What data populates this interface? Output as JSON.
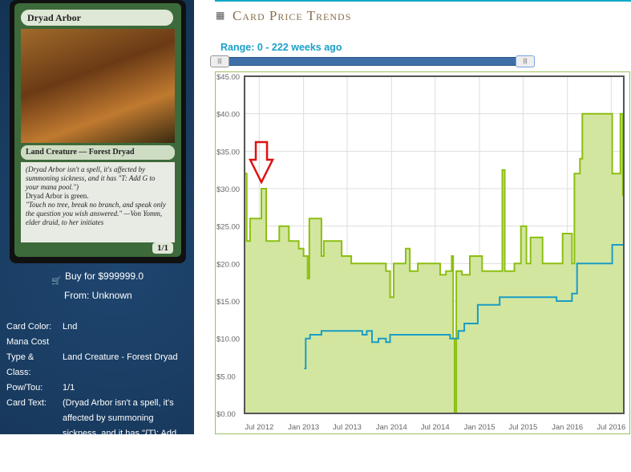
{
  "card": {
    "name": "Dryad Arbor",
    "type_line": "Land Creature — Forest Dryad",
    "rules": "(Dryad Arbor isn't a spell, it's affected by summoning sickness, and it has \"T: Add G to your mana pool.\")",
    "rules2": "Dryad Arbor is green.",
    "flavor": "\"Touch no tree, break no branch, and speak only the question you wish answered.\" —Von Yomm, elder druid, to her initiates",
    "pt": "1/1"
  },
  "buy": {
    "label": "Buy for $999999.0",
    "from": "From: Unknown",
    "icon": "cart-icon"
  },
  "info": [
    {
      "k": "Card Color:",
      "v": "Lnd"
    },
    {
      "k": "Mana Cost",
      "v": ""
    },
    {
      "k": "Type & Class:",
      "v": "Land Creature - Forest Dryad"
    },
    {
      "k": "Pow/Tou:",
      "v": "1/1"
    },
    {
      "k": "Card Text:",
      "v": "(Dryad Arbor isn't a spell, it's affected by summoning sickness, and it has \"{T}: Add {G} to your mana pool.\") Dryad"
    }
  ],
  "header": {
    "title": "Card Price Trends",
    "icon": "calendar-icon",
    "accent": "#10a8c8"
  },
  "range": {
    "label": "Range: 0 - 222 weeks ago",
    "min_weeks": 0,
    "max_weeks": 222
  },
  "chart_data": {
    "type": "line",
    "xlim": [
      "2012-05-01",
      "2016-08-22"
    ],
    "ylim": [
      0,
      45
    ],
    "yticks": [
      "$0.00",
      "$5.00",
      "$10.00",
      "$15.00",
      "$20.00",
      "$25.00",
      "$30.00",
      "$35.00",
      "$40.00",
      "$45.00"
    ],
    "xticks": [
      {
        "d": "2012-07-01",
        "l": "Jul 2012"
      },
      {
        "d": "2013-01-01",
        "l": "Jan 2013"
      },
      {
        "d": "2013-07-01",
        "l": "Jul 2013"
      },
      {
        "d": "2014-01-01",
        "l": "Jan 2014"
      },
      {
        "d": "2014-07-01",
        "l": "Jul 2014"
      },
      {
        "d": "2015-01-01",
        "l": "Jan 2015"
      },
      {
        "d": "2015-07-01",
        "l": "Jul 2015"
      },
      {
        "d": "2016-01-01",
        "l": "Jan 2016"
      },
      {
        "d": "2016-07-01",
        "l": "Jul 2016"
      }
    ],
    "grid": true,
    "annotation": "red down arrow at Jul 2012 peak",
    "series": [
      {
        "color": "#8cbf10",
        "fill": "#d2e6a0",
        "points": [
          [
            "2012-05-01",
            32
          ],
          [
            "2012-05-10",
            23
          ],
          [
            "2012-05-24",
            26
          ],
          [
            "2012-06-20",
            26
          ],
          [
            "2012-07-10",
            30
          ],
          [
            "2012-07-23",
            30
          ],
          [
            "2012-07-30",
            23
          ],
          [
            "2012-09-12",
            23
          ],
          [
            "2012-09-22",
            25
          ],
          [
            "2012-10-22",
            25
          ],
          [
            "2012-11-01",
            23
          ],
          [
            "2012-12-12",
            22
          ],
          [
            "2013-01-01",
            21
          ],
          [
            "2013-01-18",
            18
          ],
          [
            "2013-01-25",
            26
          ],
          [
            "2013-03-06",
            26
          ],
          [
            "2013-03-16",
            21
          ],
          [
            "2013-03-26",
            23
          ],
          [
            "2013-05-22",
            23
          ],
          [
            "2013-06-08",
            21
          ],
          [
            "2013-07-18",
            20
          ],
          [
            "2013-10-03",
            20
          ],
          [
            "2013-12-09",
            19
          ],
          [
            "2013-12-26",
            15.5
          ],
          [
            "2014-01-10",
            20
          ],
          [
            "2014-03-01",
            22
          ],
          [
            "2014-03-18",
            19
          ],
          [
            "2014-04-20",
            20
          ],
          [
            "2014-06-10",
            20
          ],
          [
            "2014-07-22",
            18.5
          ],
          [
            "2014-08-15",
            19
          ],
          [
            "2014-09-08",
            21
          ],
          [
            "2014-09-14",
            10
          ],
          [
            "2014-09-20",
            0
          ],
          [
            "2014-09-27",
            19
          ],
          [
            "2014-10-20",
            18.5
          ],
          [
            "2014-11-22",
            21
          ],
          [
            "2015-01-12",
            19
          ],
          [
            "2015-03-20",
            19
          ],
          [
            "2015-04-06",
            32.5
          ],
          [
            "2015-04-16",
            19
          ],
          [
            "2015-05-26",
            20
          ],
          [
            "2015-06-22",
            25
          ],
          [
            "2015-07-15",
            20
          ],
          [
            "2015-08-01",
            23.5
          ],
          [
            "2015-09-20",
            20
          ],
          [
            "2015-12-12",
            24
          ],
          [
            "2016-01-20",
            20
          ],
          [
            "2016-01-30",
            32
          ],
          [
            "2016-02-22",
            34
          ],
          [
            "2016-03-03",
            40
          ],
          [
            "2016-06-28",
            40
          ],
          [
            "2016-07-05",
            32
          ],
          [
            "2016-08-01",
            32
          ],
          [
            "2016-08-08",
            40
          ],
          [
            "2016-08-18",
            29
          ]
        ]
      },
      {
        "color": "#1a9cc4",
        "points": [
          [
            "2013-01-04",
            6
          ],
          [
            "2013-01-10",
            10
          ],
          [
            "2013-01-28",
            10.5
          ],
          [
            "2013-03-16",
            11
          ],
          [
            "2013-08-16",
            11
          ],
          [
            "2013-09-02",
            10.5
          ],
          [
            "2013-09-20",
            11
          ],
          [
            "2013-10-12",
            9.5
          ],
          [
            "2013-11-08",
            10
          ],
          [
            "2013-12-09",
            9.5
          ],
          [
            "2013-12-26",
            10.5
          ],
          [
            "2014-07-12",
            10.5
          ],
          [
            "2014-09-01",
            10
          ],
          [
            "2014-10-05",
            11
          ],
          [
            "2014-10-30",
            12
          ],
          [
            "2014-12-25",
            14.5
          ],
          [
            "2015-03-26",
            15.5
          ],
          [
            "2015-11-10",
            15.5
          ],
          [
            "2015-11-17",
            15
          ],
          [
            "2016-01-20",
            16
          ],
          [
            "2016-02-10",
            20
          ],
          [
            "2016-06-21",
            20
          ],
          [
            "2016-07-05",
            22.5
          ],
          [
            "2016-08-20",
            22.5
          ]
        ]
      }
    ]
  }
}
